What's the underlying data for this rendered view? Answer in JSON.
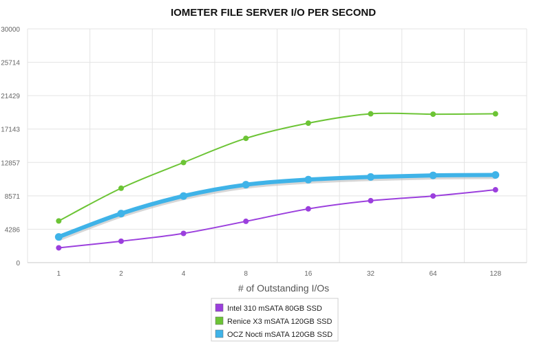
{
  "chart_data": {
    "type": "line",
    "title": "IOMETER FILE SERVER I/O PER SECOND",
    "xlabel": "# of Outstanding I/Os",
    "ylabel": "",
    "categories": [
      "1",
      "2",
      "4",
      "8",
      "16",
      "32",
      "64",
      "128"
    ],
    "yticks": [
      "0",
      "4286",
      "8571",
      "12857",
      "17143",
      "21429",
      "25714",
      "30000"
    ],
    "ylim": [
      0,
      30000
    ],
    "grid": true,
    "legend_position": "bottom",
    "series": [
      {
        "name": "Intel 310 mSATA 80GB SSD",
        "color": "#9b3fdd",
        "values": [
          1900,
          2750,
          3750,
          5300,
          6900,
          7950,
          8550,
          9350
        ]
      },
      {
        "name": "Renice X3 mSATA 120GB SSD",
        "color": "#6cc435",
        "values": [
          5350,
          9550,
          12850,
          15950,
          17900,
          19100,
          19050,
          19100
        ]
      },
      {
        "name": "OCZ Nocti mSATA 120GB SSD",
        "color": "#3fb3e8",
        "values": [
          3300,
          6300,
          8550,
          10000,
          10650,
          11000,
          11200,
          11250
        ]
      }
    ]
  }
}
